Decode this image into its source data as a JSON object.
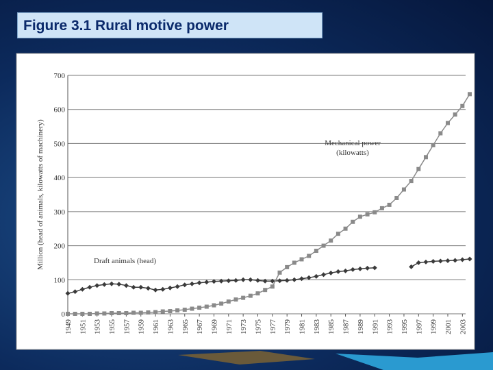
{
  "chart_data": {
    "type": "line",
    "title": "Figure 3.1 Rural motive power",
    "ylabel": "Million (head of animals, kilowatts of machinery)",
    "x": [
      1949,
      1950,
      1951,
      1952,
      1953,
      1954,
      1955,
      1956,
      1957,
      1958,
      1959,
      1960,
      1961,
      1962,
      1963,
      1964,
      1965,
      1966,
      1967,
      1968,
      1969,
      1970,
      1971,
      1972,
      1973,
      1974,
      1975,
      1976,
      1977,
      1978,
      1979,
      1980,
      1981,
      1982,
      1983,
      1984,
      1985,
      1986,
      1987,
      1988,
      1989,
      1990,
      1991,
      1992,
      1993,
      1994,
      1995,
      1996,
      1997,
      1998,
      1999,
      2000,
      2001,
      2002,
      2003,
      2004
    ],
    "series": [
      {
        "name": "Draft animals (head)",
        "label_lines": [
          "Draft animals (head)"
        ],
        "color": "#3a3a3a",
        "marker": "diamond",
        "values": [
          60,
          65,
          72,
          78,
          83,
          86,
          88,
          87,
          83,
          78,
          78,
          75,
          70,
          72,
          76,
          80,
          85,
          88,
          91,
          93,
          95,
          96,
          97,
          98,
          100,
          100,
          98,
          96,
          96,
          97,
          98,
          100,
          103,
          106,
          110,
          115,
          120,
          124,
          126,
          130,
          132,
          134,
          135,
          null,
          null,
          null,
          null,
          138,
          150,
          152,
          154,
          155,
          156,
          157,
          159,
          161
        ]
      },
      {
        "name": "Mechanical power (kilowatts)",
        "label_lines": [
          "Mechanical power",
          "(kilowatts)"
        ],
        "color": "#8a8a8a",
        "marker": "square",
        "values": [
          0,
          0,
          0,
          0,
          1,
          1,
          2,
          2,
          2,
          3,
          3,
          4,
          5,
          7,
          8,
          10,
          12,
          15,
          18,
          21,
          25,
          30,
          36,
          42,
          47,
          53,
          60,
          70,
          80,
          121,
          137,
          150,
          160,
          170,
          185,
          200,
          215,
          235,
          250,
          270,
          285,
          292,
          298,
          310,
          320,
          340,
          365,
          390,
          425,
          460,
          495,
          530,
          560,
          585,
          610,
          645
        ]
      }
    ],
    "xlim": [
      1949,
      2004
    ],
    "xticks": [
      1949,
      1951,
      1953,
      1955,
      1957,
      1959,
      1961,
      1963,
      1965,
      1967,
      1969,
      1971,
      1973,
      1975,
      1977,
      1979,
      1981,
      1983,
      1985,
      1987,
      1989,
      1991,
      1993,
      1995,
      1997,
      1999,
      2001,
      2003
    ],
    "ylim": [
      0,
      700
    ],
    "yticks": [
      0,
      100,
      200,
      300,
      400,
      500,
      600,
      700
    ],
    "grid": true
  }
}
